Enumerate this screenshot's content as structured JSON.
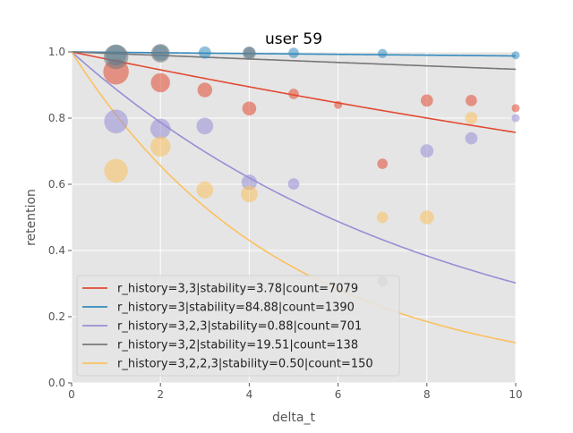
{
  "chart_data": {
    "type": "scatter",
    "title": "user 59",
    "xlabel": "delta_t",
    "ylabel": "retention",
    "xlim": [
      0,
      10
    ],
    "ylim": [
      0,
      1.0
    ],
    "xticks": [
      "0",
      "2",
      "4",
      "6",
      "8",
      "10"
    ],
    "yticks": [
      "0.0",
      "0.2",
      "0.4",
      "0.6",
      "0.8",
      "1.0"
    ],
    "grid": true,
    "legend_position": "lower-left",
    "series": [
      {
        "name": "r_history=3,3|stability=3.78|count=7079",
        "color": "#E24A33",
        "stability": 3.78,
        "points": [
          {
            "x": 1,
            "y": 0.94,
            "size": 30
          },
          {
            "x": 2,
            "y": 0.907,
            "size": 17
          },
          {
            "x": 3,
            "y": 0.885,
            "size": 10
          },
          {
            "x": 4,
            "y": 0.829,
            "size": 9
          },
          {
            "x": 5,
            "y": 0.873,
            "size": 5
          },
          {
            "x": 6,
            "y": 0.84,
            "size": 3
          },
          {
            "x": 7,
            "y": 0.662,
            "size": 5
          },
          {
            "x": 8,
            "y": 0.853,
            "size": 7
          },
          {
            "x": 9,
            "y": 0.853,
            "size": 6
          },
          {
            "x": 10,
            "y": 0.83,
            "size": 3
          }
        ]
      },
      {
        "name": "r_history=3|stability=84.88|count=1390",
        "color": "#348ABD",
        "stability": 84.88,
        "points": [
          {
            "x": 1,
            "y": 0.99,
            "size": 20
          },
          {
            "x": 2,
            "y": 0.997,
            "size": 12
          },
          {
            "x": 3,
            "y": 0.998,
            "size": 7
          },
          {
            "x": 4,
            "y": 0.998,
            "size": 6
          },
          {
            "x": 5,
            "y": 0.997,
            "size": 5
          },
          {
            "x": 7,
            "y": 0.995,
            "size": 4
          },
          {
            "x": 10,
            "y": 0.99,
            "size": 3
          }
        ]
      },
      {
        "name": "r_history=3,2,3|stability=0.88|count=701",
        "color": "#988ED5",
        "stability": 0.88,
        "points": [
          {
            "x": 1,
            "y": 0.79,
            "size": 26
          },
          {
            "x": 2,
            "y": 0.768,
            "size": 19
          },
          {
            "x": 3,
            "y": 0.776,
            "size": 13
          },
          {
            "x": 4,
            "y": 0.606,
            "size": 11
          },
          {
            "x": 5,
            "y": 0.601,
            "size": 6
          },
          {
            "x": 8,
            "y": 0.701,
            "size": 8
          },
          {
            "x": 9,
            "y": 0.739,
            "size": 7
          },
          {
            "x": 10,
            "y": 0.8,
            "size": 3
          }
        ]
      },
      {
        "name": "r_history=3,2|stability=19.51|count=138",
        "color": "#777777",
        "stability": 19.51,
        "points": [
          {
            "x": 1,
            "y": 0.985,
            "size": 28
          },
          {
            "x": 2,
            "y": 0.996,
            "size": 16
          },
          {
            "x": 4,
            "y": 0.996,
            "size": 8
          },
          {
            "x": 7,
            "y": 0.307,
            "size": 5
          }
        ]
      },
      {
        "name": "r_history=3,2,2,3|stability=0.50|count=150",
        "color": "#FBC15E",
        "stability": 0.5,
        "points": [
          {
            "x": 1,
            "y": 0.641,
            "size": 26
          },
          {
            "x": 2,
            "y": 0.714,
            "size": 19
          },
          {
            "x": 3,
            "y": 0.583,
            "size": 13
          },
          {
            "x": 4,
            "y": 0.571,
            "size": 13
          },
          {
            "x": 7,
            "y": 0.5,
            "size": 6
          },
          {
            "x": 8,
            "y": 0.5,
            "size": 9
          },
          {
            "x": 9,
            "y": 0.8,
            "size": 7
          }
        ]
      }
    ]
  }
}
